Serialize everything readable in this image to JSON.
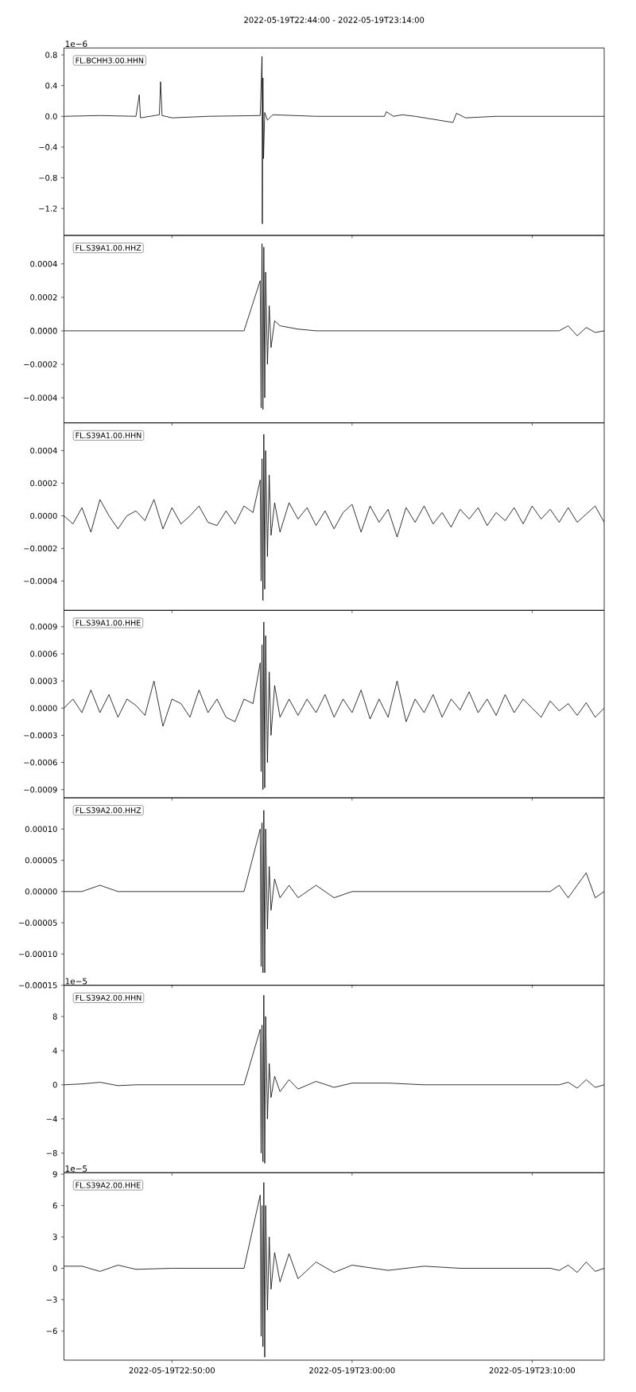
{
  "chart_data": [
    {
      "type": "line",
      "title": "2022-05-19T22:44:00  -  2022-05-19T23:14:00",
      "annotations": [
        "FL.BCHH3.00.HHN",
        "1e−6"
      ],
      "color": "#000000",
      "tick_labels": "y",
      "x": [
        "2022-05-19T22:44:00",
        "2022-05-19T22:46:00",
        "2022-05-19T22:48:00",
        "2022-05-19T22:48:11",
        "2022-05-19T22:48:15",
        "2022-05-19T22:49:18",
        "2022-05-19T22:49:22",
        "2022-05-19T22:49:27",
        "2022-05-19T22:50:00",
        "2022-05-19T22:52:00",
        "2022-05-19T22:54:54",
        "2022-05-19T22:55:00",
        "2022-05-19T22:55:01",
        "2022-05-19T22:55:03",
        "2022-05-19T22:55:05",
        "2022-05-19T22:55:09",
        "2022-05-19T22:55:18",
        "2022-05-19T22:55:36",
        "2022-05-19T22:58:00",
        "2022-05-19T23:01:48",
        "2022-05-19T23:01:54",
        "2022-05-19T23:02:18",
        "2022-05-19T23:02:48",
        "2022-05-19T23:03:30",
        "2022-05-19T23:05:36",
        "2022-05-19T23:05:48",
        "2022-05-19T23:06:18",
        "2022-05-19T23:08:00",
        "2022-05-19T23:14:00"
      ],
      "values": [
        0,
        0.01,
        0,
        0.28,
        -0.02,
        0.02,
        0.45,
        0.01,
        -0.02,
        0,
        0.01,
        0.78,
        -1.4,
        0.5,
        -0.55,
        0.05,
        -0.05,
        0.02,
        0,
        0,
        0.06,
        0,
        0.02,
        0,
        -0.08,
        0.04,
        -0.02,
        0,
        0
      ],
      "xlim": [
        "2022-05-19T22:44:00",
        "2022-05-19T23:14:00"
      ],
      "ylim": [
        -1.55,
        0.89
      ],
      "xticks": [
        {
          "value": "2022-05-19T22:50:00",
          "label": null
        },
        {
          "value": "2022-05-19T23:00:00",
          "label": null
        },
        {
          "value": "2022-05-19T23:10:00",
          "label": null
        }
      ],
      "yticks": [
        {
          "value": -1.2,
          "label": "−1.2"
        },
        {
          "value": -0.8,
          "label": "−0.8"
        },
        {
          "value": -0.4,
          "label": "−0.4"
        },
        {
          "value": 0,
          "label": "0.0"
        },
        0.4,
        0.8
      ]
    },
    {
      "type": "line",
      "annotations": [
        "FL.S39A1.00.HHZ"
      ],
      "color": "#000000",
      "tick_labels": "y",
      "x": [
        "2022-05-19T22:44:00",
        "2022-05-19T22:45:00",
        "2022-05-19T22:46:00",
        "2022-05-19T22:47:00",
        "2022-05-19T22:48:00",
        "2022-05-19T22:50:00",
        "2022-05-19T22:52:00",
        "2022-05-19T22:54:00",
        "2022-05-19T22:54:54",
        "2022-05-19T22:54:57",
        "2022-05-19T22:55:00",
        "2022-05-19T22:55:03",
        "2022-05-19T22:55:06",
        "2022-05-19T22:55:09",
        "2022-05-19T22:55:12",
        "2022-05-19T22:55:18",
        "2022-05-19T22:55:24",
        "2022-05-19T22:55:30",
        "2022-05-19T22:55:42",
        "2022-05-19T22:56:00",
        "2022-05-19T22:56:30",
        "2022-05-19T22:57:00",
        "2022-05-19T22:58:00",
        "2022-05-19T22:59:00",
        "2022-05-19T23:00:00",
        "2022-05-19T23:02:00",
        "2022-05-19T23:04:00",
        "2022-05-19T23:06:00",
        "2022-05-19T23:08:00",
        "2022-05-19T23:10:00",
        "2022-05-19T23:11:00",
        "2022-05-19T23:11:30",
        "2022-05-19T23:12:00",
        "2022-05-19T23:12:30",
        "2022-05-19T23:13:00",
        "2022-05-19T23:13:30",
        "2022-05-19T23:14:00"
      ],
      "values": [
        0,
        0,
        0,
        0,
        0,
        0,
        0,
        0,
        0.0003,
        -0.00046,
        0.00052,
        -0.00047,
        0.0005,
        -0.0004,
        0.00035,
        -0.0002,
        0.00015,
        -0.0001,
        6e-05,
        3e-05,
        2e-05,
        1e-05,
        0,
        0,
        0,
        0,
        0,
        0,
        0,
        0,
        0,
        0,
        3e-05,
        -3e-05,
        2e-05,
        -1e-05,
        0
      ],
      "xlim": [
        "2022-05-19T22:44:00",
        "2022-05-19T23:14:00"
      ],
      "ylim": [
        -0.00055,
        0.00057
      ],
      "xticks": [
        {
          "value": "2022-05-19T22:50:00",
          "label": null
        },
        {
          "value": "2022-05-19T23:00:00",
          "label": null
        },
        {
          "value": "2022-05-19T23:10:00",
          "label": null
        }
      ],
      "yticks": [
        {
          "value": -0.0004,
          "label": "−0.0004"
        },
        {
          "value": -0.0002,
          "label": "−0.0002"
        },
        {
          "value": 0,
          "label": "0.0000"
        },
        0.0002,
        0.0004
      ]
    },
    {
      "type": "line",
      "annotations": [
        "FL.S39A1.00.HHN"
      ],
      "color": "#000000",
      "tick_labels": "y",
      "x": [
        "2022-05-19T22:44:00",
        "2022-05-19T22:44:30",
        "2022-05-19T22:45:00",
        "2022-05-19T22:45:30",
        "2022-05-19T22:46:00",
        "2022-05-19T22:46:30",
        "2022-05-19T22:47:00",
        "2022-05-19T22:47:30",
        "2022-05-19T22:48:00",
        "2022-05-19T22:48:30",
        "2022-05-19T22:49:00",
        "2022-05-19T22:49:30",
        "2022-05-19T22:50:00",
        "2022-05-19T22:50:30",
        "2022-05-19T22:51:00",
        "2022-05-19T22:51:30",
        "2022-05-19T22:52:00",
        "2022-05-19T22:52:30",
        "2022-05-19T22:53:00",
        "2022-05-19T22:53:30",
        "2022-05-19T22:54:00",
        "2022-05-19T22:54:30",
        "2022-05-19T22:54:54",
        "2022-05-19T22:54:57",
        "2022-05-19T22:55:00",
        "2022-05-19T22:55:03",
        "2022-05-19T22:55:06",
        "2022-05-19T22:55:09",
        "2022-05-19T22:55:12",
        "2022-05-19T22:55:18",
        "2022-05-19T22:55:24",
        "2022-05-19T22:55:30",
        "2022-05-19T22:55:42",
        "2022-05-19T22:56:00",
        "2022-05-19T22:56:30",
        "2022-05-19T22:57:00",
        "2022-05-19T22:57:30",
        "2022-05-19T22:58:00",
        "2022-05-19T22:58:30",
        "2022-05-19T22:59:00",
        "2022-05-19T22:59:30",
        "2022-05-19T23:00:00",
        "2022-05-19T23:00:30",
        "2022-05-19T23:01:00",
        "2022-05-19T23:01:30",
        "2022-05-19T23:02:00",
        "2022-05-19T23:02:30",
        "2022-05-19T23:03:00",
        "2022-05-19T23:03:30",
        "2022-05-19T23:04:00",
        "2022-05-19T23:04:30",
        "2022-05-19T23:05:00",
        "2022-05-19T23:05:30",
        "2022-05-19T23:06:00",
        "2022-05-19T23:06:30",
        "2022-05-19T23:07:00",
        "2022-05-19T23:07:30",
        "2022-05-19T23:08:00",
        "2022-05-19T23:08:30",
        "2022-05-19T23:09:00",
        "2022-05-19T23:09:30",
        "2022-05-19T23:10:00",
        "2022-05-19T23:10:30",
        "2022-05-19T23:11:00",
        "2022-05-19T23:11:30",
        "2022-05-19T23:12:00",
        "2022-05-19T23:12:30",
        "2022-05-19T23:13:00",
        "2022-05-19T23:13:30",
        "2022-05-19T23:14:00"
      ],
      "values": [
        0,
        -5e-05,
        5e-05,
        -0.0001,
        0.0001,
        0,
        -8e-05,
        0,
        3e-05,
        -3e-05,
        0.0001,
        -8e-05,
        5e-05,
        -5e-05,
        0,
        6e-05,
        -4e-05,
        -6e-05,
        3e-05,
        -5e-05,
        6e-05,
        2e-05,
        0.00022,
        -0.0004,
        0.00035,
        -0.00052,
        0.0005,
        -0.00045,
        0.0004,
        -0.00025,
        0.00025,
        -0.00012,
        8e-05,
        -0.0001,
        8e-05,
        -2e-05,
        5e-05,
        -6e-05,
        3e-05,
        -8e-05,
        2e-05,
        7e-05,
        -0.0001,
        6e-05,
        -4e-05,
        4e-05,
        -0.00013,
        5e-05,
        -4e-05,
        6e-05,
        -5e-05,
        2e-05,
        -7e-05,
        4e-05,
        -2e-05,
        5e-05,
        -6e-05,
        2e-05,
        -3e-05,
        5e-05,
        -5e-05,
        6e-05,
        -2e-05,
        4e-05,
        -4e-05,
        5e-05,
        -4e-05,
        1e-05,
        6e-05,
        -4e-05
      ],
      "xlim": [
        "2022-05-19T22:44:00",
        "2022-05-19T23:14:00"
      ],
      "ylim": [
        -0.00058,
        0.00057
      ],
      "xticks": [
        {
          "value": "2022-05-19T22:50:00",
          "label": null
        },
        {
          "value": "2022-05-19T23:00:00",
          "label": null
        },
        {
          "value": "2022-05-19T23:10:00",
          "label": null
        }
      ],
      "yticks": [
        {
          "value": -0.0004,
          "label": "−0.0004"
        },
        {
          "value": -0.0002,
          "label": "−0.0002"
        },
        {
          "value": 0,
          "label": "0.0000"
        },
        0.0002,
        0.0004
      ]
    },
    {
      "type": "line",
      "annotations": [
        "FL.S39A1.00.HHE"
      ],
      "color": "#000000",
      "tick_labels": "y",
      "x": [
        "2022-05-19T22:44:00",
        "2022-05-19T22:44:30",
        "2022-05-19T22:45:00",
        "2022-05-19T22:45:30",
        "2022-05-19T22:46:00",
        "2022-05-19T22:46:30",
        "2022-05-19T22:47:00",
        "2022-05-19T22:47:30",
        "2022-05-19T22:48:00",
        "2022-05-19T22:48:30",
        "2022-05-19T22:49:00",
        "2022-05-19T22:49:30",
        "2022-05-19T22:50:00",
        "2022-05-19T22:50:30",
        "2022-05-19T22:51:00",
        "2022-05-19T22:51:30",
        "2022-05-19T22:52:00",
        "2022-05-19T22:52:30",
        "2022-05-19T22:53:00",
        "2022-05-19T22:53:30",
        "2022-05-19T22:54:00",
        "2022-05-19T22:54:30",
        "2022-05-19T22:54:54",
        "2022-05-19T22:54:57",
        "2022-05-19T22:55:00",
        "2022-05-19T22:55:03",
        "2022-05-19T22:55:06",
        "2022-05-19T22:55:09",
        "2022-05-19T22:55:12",
        "2022-05-19T22:55:18",
        "2022-05-19T22:55:24",
        "2022-05-19T22:55:30",
        "2022-05-19T22:55:42",
        "2022-05-19T22:56:00",
        "2022-05-19T22:56:30",
        "2022-05-19T22:57:00",
        "2022-05-19T22:57:30",
        "2022-05-19T22:58:00",
        "2022-05-19T22:58:30",
        "2022-05-19T22:59:00",
        "2022-05-19T22:59:30",
        "2022-05-19T23:00:00",
        "2022-05-19T23:00:30",
        "2022-05-19T23:01:00",
        "2022-05-19T23:01:30",
        "2022-05-19T23:02:00",
        "2022-05-19T23:02:30",
        "2022-05-19T23:03:00",
        "2022-05-19T23:03:30",
        "2022-05-19T23:04:00",
        "2022-05-19T23:04:30",
        "2022-05-19T23:05:00",
        "2022-05-19T23:05:30",
        "2022-05-19T23:06:00",
        "2022-05-19T23:06:30",
        "2022-05-19T23:07:00",
        "2022-05-19T23:07:30",
        "2022-05-19T23:08:00",
        "2022-05-19T23:08:30",
        "2022-05-19T23:09:00",
        "2022-05-19T23:09:30",
        "2022-05-19T23:10:00",
        "2022-05-19T23:10:30",
        "2022-05-19T23:11:00",
        "2022-05-19T23:11:30",
        "2022-05-19T23:12:00",
        "2022-05-19T23:12:30",
        "2022-05-19T23:13:00",
        "2022-05-19T23:13:30",
        "2022-05-19T23:14:00"
      ],
      "values": [
        0,
        0.0001,
        -5e-05,
        0.0002,
        -5e-05,
        0.00015,
        -0.0001,
        0.0001,
        3e-05,
        -8e-05,
        0.0003,
        -0.0002,
        0.0001,
        5e-05,
        -0.0001,
        0.0002,
        -5e-05,
        0.0001,
        -0.0001,
        -0.00015,
        0.0001,
        5e-05,
        0.0005,
        -0.0007,
        0.0007,
        -0.0009,
        0.00095,
        -0.00088,
        0.0008,
        -0.0006,
        0.0004,
        -0.0003,
        0.00025,
        -0.0001,
        0.0001,
        -8e-05,
        0.0001,
        -5e-05,
        0.00015,
        -0.0001,
        0.0001,
        -5e-05,
        0.0002,
        -0.00012,
        0.0001,
        -0.0001,
        0.0003,
        -0.00015,
        0.0001,
        -5e-05,
        0.00015,
        -0.0001,
        0.0001,
        -2e-05,
        0.00018,
        -5e-05,
        0.0001,
        -8e-05,
        0.00015,
        -5e-05,
        0.0001,
        0,
        -0.0001,
        8e-05,
        -3e-05,
        5e-05,
        -8e-05,
        6e-05,
        -0.0001,
        0
      ],
      "xlim": [
        "2022-05-19T22:44:00",
        "2022-05-19T23:14:00"
      ],
      "ylim": [
        -0.00099,
        0.00108
      ],
      "xticks": [
        {
          "value": "2022-05-19T22:50:00",
          "label": null
        },
        {
          "value": "2022-05-19T23:00:00",
          "label": null
        },
        {
          "value": "2022-05-19T23:10:00",
          "label": null
        }
      ],
      "yticks": [
        {
          "value": -0.0009,
          "label": "−0.0009"
        },
        {
          "value": -0.0006,
          "label": "−0.0006"
        },
        {
          "value": -0.0003,
          "label": "−0.0003"
        },
        {
          "value": 0,
          "label": "0.0000"
        },
        0.0003,
        0.0006,
        0.0009
      ]
    },
    {
      "type": "line",
      "annotations": [
        "FL.S39A2.00.HHZ"
      ],
      "color": "#000000",
      "tick_labels": "y",
      "x": [
        "2022-05-19T22:44:00",
        "2022-05-19T22:45:00",
        "2022-05-19T22:46:00",
        "2022-05-19T22:47:00",
        "2022-05-19T22:48:00",
        "2022-05-19T22:50:00",
        "2022-05-19T22:52:00",
        "2022-05-19T22:54:00",
        "2022-05-19T22:54:54",
        "2022-05-19T22:54:57",
        "2022-05-19T22:55:00",
        "2022-05-19T22:55:03",
        "2022-05-19T22:55:06",
        "2022-05-19T22:55:09",
        "2022-05-19T22:55:12",
        "2022-05-19T22:55:18",
        "2022-05-19T22:55:24",
        "2022-05-19T22:55:30",
        "2022-05-19T22:55:42",
        "2022-05-19T22:56:00",
        "2022-05-19T22:56:30",
        "2022-05-19T22:57:00",
        "2022-05-19T22:58:00",
        "2022-05-19T22:59:00",
        "2022-05-19T23:00:00",
        "2022-05-19T23:02:00",
        "2022-05-19T23:04:00",
        "2022-05-19T23:06:00",
        "2022-05-19T23:08:00",
        "2022-05-19T23:10:00",
        "2022-05-19T23:11:00",
        "2022-05-19T23:11:30",
        "2022-05-19T23:12:00",
        "2022-05-19T23:12:30",
        "2022-05-19T23:13:00",
        "2022-05-19T23:13:30",
        "2022-05-19T23:14:00"
      ],
      "values": [
        0,
        0,
        1e-05,
        0,
        0,
        0,
        0,
        0,
        0.0001,
        -0.00012,
        0.00011,
        -0.00013,
        0.00013,
        -0.00013,
        0.0001,
        -6e-05,
        4e-05,
        -3e-05,
        2e-05,
        -1e-05,
        1e-05,
        -1e-05,
        1e-05,
        -1e-05,
        0,
        0,
        0,
        0,
        0,
        0,
        0,
        1e-05,
        -1e-05,
        1e-05,
        3e-05,
        -1e-05,
        0
      ],
      "xlim": [
        "2022-05-19T22:44:00",
        "2022-05-19T23:14:00"
      ],
      "ylim": [
        -0.00015,
        0.00015
      ],
      "xticks": [
        {
          "value": "2022-05-19T22:50:00",
          "label": null
        },
        {
          "value": "2022-05-19T23:00:00",
          "label": null
        },
        {
          "value": "2022-05-19T23:10:00",
          "label": null
        }
      ],
      "yticks": [
        {
          "value": -0.00015,
          "label": "−0.00015"
        },
        {
          "value": -0.0001,
          "label": "−0.00010"
        },
        {
          "value": -5e-05,
          "label": "−0.00005"
        },
        {
          "value": 0,
          "label": "0.00000"
        },
        {
          "value": 5e-05,
          "label": "0.00005"
        },
        {
          "value": 0.0001,
          "label": "0.00010"
        }
      ]
    },
    {
      "type": "line",
      "annotations": [
        "FL.S39A2.00.HHN",
        "1e−5"
      ],
      "color": "#000000",
      "tick_labels": "y",
      "x": [
        "2022-05-19T22:44:00",
        "2022-05-19T22:45:00",
        "2022-05-19T22:46:00",
        "2022-05-19T22:47:00",
        "2022-05-19T22:48:00",
        "2022-05-19T22:50:00",
        "2022-05-19T22:52:00",
        "2022-05-19T22:54:00",
        "2022-05-19T22:54:54",
        "2022-05-19T22:54:57",
        "2022-05-19T22:55:00",
        "2022-05-19T22:55:03",
        "2022-05-19T22:55:06",
        "2022-05-19T22:55:09",
        "2022-05-19T22:55:12",
        "2022-05-19T22:55:18",
        "2022-05-19T22:55:24",
        "2022-05-19T22:55:30",
        "2022-05-19T22:55:42",
        "2022-05-19T22:56:00",
        "2022-05-19T22:56:30",
        "2022-05-19T22:57:00",
        "2022-05-19T22:58:00",
        "2022-05-19T22:59:00",
        "2022-05-19T23:00:00",
        "2022-05-19T23:02:00",
        "2022-05-19T23:04:00",
        "2022-05-19T23:06:00",
        "2022-05-19T23:08:00",
        "2022-05-19T23:10:00",
        "2022-05-19T23:11:00",
        "2022-05-19T23:11:30",
        "2022-05-19T23:12:00",
        "2022-05-19T23:12:30",
        "2022-05-19T23:13:00",
        "2022-05-19T23:13:30",
        "2022-05-19T23:14:00"
      ],
      "values": [
        0,
        0.1,
        0.3,
        -0.1,
        0,
        0,
        0,
        0,
        6.5,
        -8,
        7,
        -9,
        10.5,
        -9.2,
        8,
        -4,
        2.5,
        -1.5,
        1,
        -0.8,
        0.6,
        -0.5,
        0.4,
        -0.3,
        0.2,
        0.2,
        0,
        0,
        0,
        0,
        0,
        0,
        0.3,
        -0.4,
        0.6,
        -0.3,
        0
      ],
      "xlim": [
        "2022-05-19T22:44:00",
        "2022-05-19T23:14:00"
      ],
      "ylim": [
        -10.3,
        11.66
      ],
      "xticks": [
        {
          "value": "2022-05-19T22:50:00",
          "label": null
        },
        {
          "value": "2022-05-19T23:00:00",
          "label": null
        },
        {
          "value": "2022-05-19T23:10:00",
          "label": null
        }
      ],
      "yticks": [
        {
          "value": -8,
          "label": "−8"
        },
        {
          "value": -4,
          "label": "−4"
        },
        0,
        4,
        8
      ]
    },
    {
      "type": "line",
      "annotations": [
        "FL.S39A2.00.HHE",
        "1e−5"
      ],
      "color": "#000000",
      "x": [
        "2022-05-19T22:44:00",
        "2022-05-19T22:45:00",
        "2022-05-19T22:46:00",
        "2022-05-19T22:47:00",
        "2022-05-19T22:48:00",
        "2022-05-19T22:50:00",
        "2022-05-19T22:52:00",
        "2022-05-19T22:54:00",
        "2022-05-19T22:54:54",
        "2022-05-19T22:54:57",
        "2022-05-19T22:55:00",
        "2022-05-19T22:55:03",
        "2022-05-19T22:55:06",
        "2022-05-19T22:55:09",
        "2022-05-19T22:55:12",
        "2022-05-19T22:55:18",
        "2022-05-19T22:55:24",
        "2022-05-19T22:55:30",
        "2022-05-19T22:55:42",
        "2022-05-19T22:56:00",
        "2022-05-19T22:56:30",
        "2022-05-19T22:57:00",
        "2022-05-19T22:58:00",
        "2022-05-19T22:59:00",
        "2022-05-19T23:00:00",
        "2022-05-19T23:02:00",
        "2022-05-19T23:04:00",
        "2022-05-19T23:06:00",
        "2022-05-19T23:08:00",
        "2022-05-19T23:10:00",
        "2022-05-19T23:11:00",
        "2022-05-19T23:11:30",
        "2022-05-19T23:12:00",
        "2022-05-19T23:12:30",
        "2022-05-19T23:13:00",
        "2022-05-19T23:13:30",
        "2022-05-19T23:14:00"
      ],
      "values": [
        0.2,
        0.2,
        -0.3,
        0.3,
        -0.1,
        0,
        0,
        0,
        7,
        -6.5,
        6,
        -7.5,
        8.2,
        -8.5,
        6,
        -4,
        3,
        -2,
        1.5,
        -1.3,
        1.4,
        -1,
        0.6,
        -0.4,
        0.3,
        -0.2,
        0.2,
        0,
        0,
        0,
        0,
        -0.2,
        0.3,
        -0.4,
        0.6,
        -0.3,
        0
      ],
      "xlim": [
        "2022-05-19T22:44:00",
        "2022-05-19T23:14:00"
      ],
      "ylim": [
        -8.79,
        9.14
      ],
      "xticks": [
        {
          "value": "2022-05-19T22:50:00",
          "label": "2022-05-19T22:50:00"
        },
        {
          "value": "2022-05-19T23:00:00",
          "label": "2022-05-19T23:00:00"
        },
        {
          "value": "2022-05-19T23:10:00",
          "label": "2022-05-19T23:10:00"
        }
      ],
      "yticks": [
        {
          "value": -6,
          "label": "−6"
        },
        {
          "value": -3,
          "label": "−3"
        },
        0,
        3,
        6,
        9
      ]
    }
  ]
}
